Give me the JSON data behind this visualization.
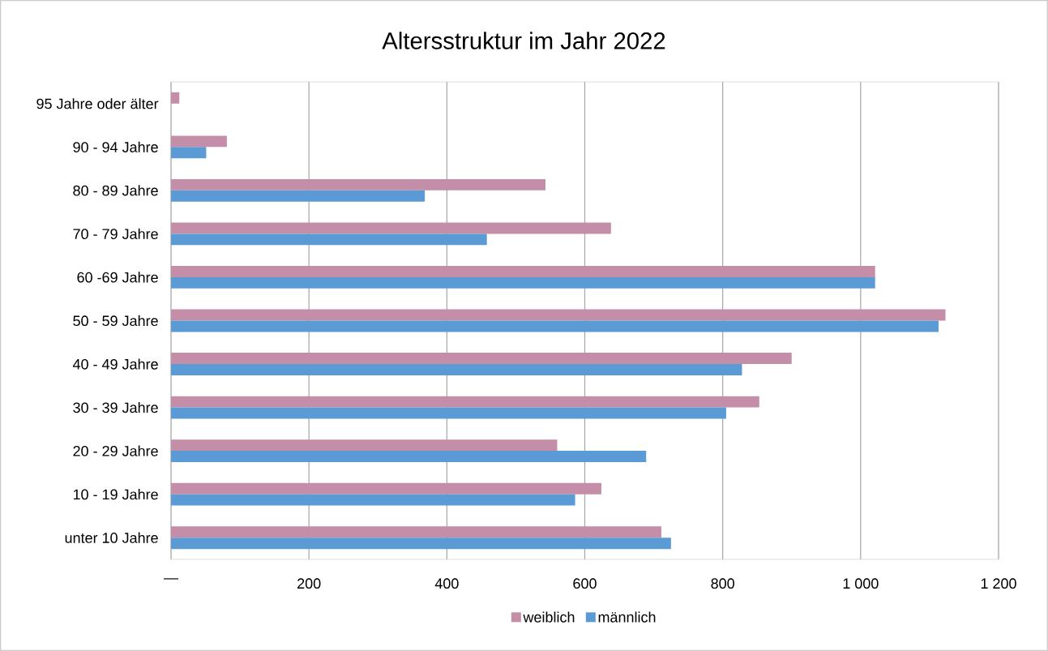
{
  "chart_data": {
    "type": "bar",
    "orientation": "horizontal",
    "title": "Altersstruktur im Jahr 2022",
    "categories": [
      "95 Jahre oder älter",
      "90 - 94 Jahre",
      "80 - 89 Jahre",
      "70 - 79 Jahre",
      "60 -69 Jahre",
      "50 - 59 Jahre",
      "40 - 49 Jahre",
      "30 - 39 Jahre",
      "20 - 29 Jahre",
      "10 - 19 Jahre",
      "unter 10 Jahre"
    ],
    "series": [
      {
        "name": "weiblich",
        "color": "#c48ea8",
        "values": [
          12,
          81,
          543,
          638,
          1021,
          1123,
          900,
          853,
          560,
          624,
          711
        ]
      },
      {
        "name": "männlich",
        "color": "#5b9bd5",
        "values": [
          null,
          51,
          368,
          458,
          1021,
          1113,
          828,
          805,
          689,
          586,
          725
        ]
      }
    ],
    "xlim": [
      0,
      1200
    ],
    "xticks": [
      {
        "value": 0,
        "label": "—"
      },
      200,
      400,
      600,
      {
        "value": 800,
        "label": "800"
      },
      {
        "value": 1000,
        "label": "1 000"
      },
      {
        "value": 1200,
        "label": "1 200"
      }
    ],
    "grid": "x",
    "legend": "bottom"
  }
}
